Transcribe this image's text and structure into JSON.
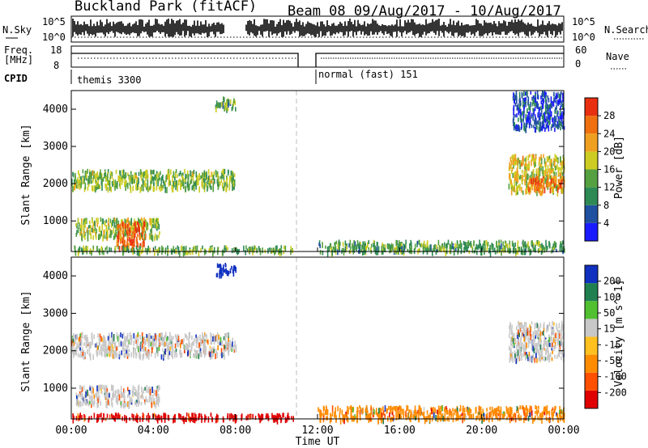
{
  "header": {
    "title_left": "Buckland Park (fitACF)",
    "title_right": "Beam 08  09/Aug/2017 - 10/Aug/2017"
  },
  "noise_panel": {
    "left_label": "N.Sky",
    "right_label": "N.Search",
    "left_ticks": [
      "10^5",
      "10^0"
    ],
    "right_ticks": [
      "10^5",
      "10^0"
    ]
  },
  "freq_panel": {
    "left_label_1": "Freq.",
    "left_label_2": "[MHz]",
    "left_ticks": [
      "18",
      "8"
    ],
    "right_label": "Nave",
    "right_ticks": [
      "60",
      "0"
    ]
  },
  "cpid_panel": {
    "label": "CPID",
    "segments": [
      {
        "name": "themis 3300",
        "start_hour": 0,
        "end_hour": 10.9
      },
      {
        "name": "normal (fast) 151",
        "start_hour": 11.9,
        "end_hour": 24
      }
    ]
  },
  "time_axis": {
    "label": "Time UT",
    "ticks": [
      "00:00",
      "04:00",
      "08:00",
      "12:00",
      "16:00",
      "20:00",
      "00:00"
    ]
  },
  "colors": {
    "power_scale": [
      "#1a1aff",
      "#2050a0",
      "#2e8a55",
      "#55a040",
      "#cccc22",
      "#f0a020",
      "#f07010",
      "#e83010"
    ],
    "velocity_scale": [
      "#e00000",
      "#ff5000",
      "#ff8c00",
      "#ffc020",
      "#c8c8c8",
      "#50c030",
      "#208050",
      "#1030c0"
    ]
  },
  "chart_data": [
    {
      "type": "heatmap",
      "title": "",
      "xlabel": "Time UT",
      "ylabel": "Slant Range [km]",
      "xlim": [
        0,
        24
      ],
      "ylim": [
        180,
        4500
      ],
      "yticks": [
        1000,
        2000,
        3000,
        4000
      ],
      "colorbar": {
        "label": "Power [dB]",
        "ticks": [
          "4",
          "8",
          "12",
          "16",
          "20",
          "24",
          "28"
        ],
        "range": [
          0,
          30
        ]
      },
      "regions": [
        {
          "x": [
            0,
            8.0
          ],
          "y": [
            1900,
            2400
          ],
          "value": 14
        },
        {
          "x": [
            0.2,
            4.3
          ],
          "y": [
            600,
            1100
          ],
          "value": 15
        },
        {
          "x": [
            2.2,
            3.6
          ],
          "y": [
            300,
            1000
          ],
          "value": 26
        },
        {
          "x": [
            7.0,
            8.0
          ],
          "y": [
            4050,
            4350
          ],
          "value": 12
        },
        {
          "x": [
            0,
            10.8
          ],
          "y": [
            200,
            350
          ],
          "value": 13
        },
        {
          "x": [
            12.0,
            24.0
          ],
          "y": [
            200,
            500
          ],
          "value": 12
        },
        {
          "x": [
            21.3,
            24.0
          ],
          "y": [
            1800,
            2800
          ],
          "value": 18
        },
        {
          "x": [
            22.2,
            24.0
          ],
          "y": [
            1900,
            2200
          ],
          "value": 24
        },
        {
          "x": [
            21.5,
            24.0
          ],
          "y": [
            3500,
            4500
          ],
          "value": 5
        }
      ]
    },
    {
      "type": "heatmap",
      "title": "",
      "xlabel": "Time UT",
      "ylabel": "Slant Range [km]",
      "xlim": [
        0,
        24
      ],
      "ylim": [
        180,
        4500
      ],
      "yticks": [
        1000,
        2000,
        3000,
        4000
      ],
      "colorbar": {
        "label": "Velocity [m s^-1]",
        "ticks": [
          "-200",
          "-100",
          "-50",
          "-15",
          "15",
          "50",
          "100",
          "200"
        ],
        "range": [
          -250,
          250
        ]
      },
      "regions": [
        {
          "x": [
            0,
            8.0
          ],
          "y": [
            1900,
            2500
          ],
          "value": 0
        },
        {
          "x": [
            0.2,
            4.3
          ],
          "y": [
            600,
            1100
          ],
          "value": 0
        },
        {
          "x": [
            7.0,
            8.0
          ],
          "y": [
            4050,
            4350
          ],
          "value": 220
        },
        {
          "x": [
            0,
            10.8
          ],
          "y": [
            200,
            350
          ],
          "value": -180
        },
        {
          "x": [
            12.0,
            24.0
          ],
          "y": [
            200,
            550
          ],
          "value": -40
        },
        {
          "x": [
            21.3,
            24.0
          ],
          "y": [
            1800,
            2800
          ],
          "value": 0
        }
      ]
    }
  ]
}
